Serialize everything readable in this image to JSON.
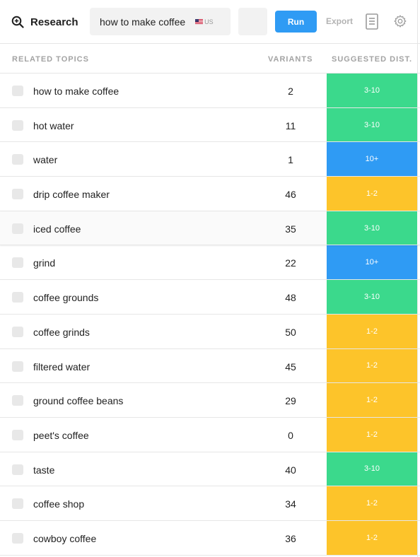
{
  "header": {
    "brand_label": "Research",
    "search_value": "how to make coffee",
    "country_code": "US",
    "run_label": "Run",
    "export_label": "Export"
  },
  "columns": {
    "topics": "RELATED TOPICS",
    "variants": "VARIANTS",
    "distance": "SUGGESTED DIST."
  },
  "colors": {
    "green": "#3bd98c",
    "blue": "#2f9bf4",
    "yellow": "#fdc42a",
    "run_button": "#2f9bf4"
  },
  "rows": [
    {
      "topic": "how to make coffee",
      "variants": "2",
      "dist": "3-10",
      "color": "green"
    },
    {
      "topic": "hot water",
      "variants": "11",
      "dist": "3-10",
      "color": "green"
    },
    {
      "topic": "water",
      "variants": "1",
      "dist": "10+",
      "color": "blue"
    },
    {
      "topic": "drip coffee maker",
      "variants": "46",
      "dist": "1-2",
      "color": "yellow"
    },
    {
      "topic": "iced coffee",
      "variants": "35",
      "dist": "3-10",
      "color": "green"
    },
    {
      "topic": "grind",
      "variants": "22",
      "dist": "10+",
      "color": "blue"
    },
    {
      "topic": "coffee grounds",
      "variants": "48",
      "dist": "3-10",
      "color": "green"
    },
    {
      "topic": "coffee grinds",
      "variants": "50",
      "dist": "1-2",
      "color": "yellow"
    },
    {
      "topic": "filtered water",
      "variants": "45",
      "dist": "1-2",
      "color": "yellow"
    },
    {
      "topic": "ground coffee beans",
      "variants": "29",
      "dist": "1-2",
      "color": "yellow"
    },
    {
      "topic": "peet's coffee",
      "variants": "0",
      "dist": "1-2",
      "color": "yellow"
    },
    {
      "topic": "taste",
      "variants": "40",
      "dist": "3-10",
      "color": "green"
    },
    {
      "topic": "coffee shop",
      "variants": "34",
      "dist": "1-2",
      "color": "yellow"
    },
    {
      "topic": "cowboy coffee",
      "variants": "36",
      "dist": "1-2",
      "color": "yellow"
    }
  ],
  "active_row": 4
}
